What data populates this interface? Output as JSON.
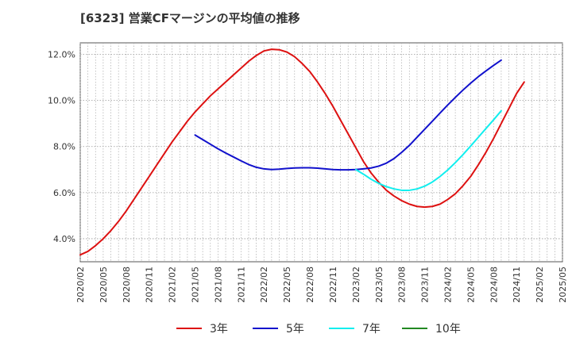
{
  "chart_data": {
    "type": "line",
    "title": "[6323]  営業CFマージンの平均値の推移",
    "xlabel": "",
    "ylabel": "",
    "y_unit": "%",
    "ylim": [
      3.0,
      12.5
    ],
    "y_ticks": [
      4.0,
      6.0,
      8.0,
      10.0,
      12.0
    ],
    "y_tick_labels": [
      "4.0%",
      "6.0%",
      "8.0%",
      "10.0%",
      "12.0%"
    ],
    "x_tick_labels": [
      "2020/02",
      "2020/05",
      "2020/08",
      "2020/11",
      "2021/02",
      "2021/05",
      "2021/08",
      "2021/11",
      "2022/02",
      "2022/05",
      "2022/08",
      "2022/11",
      "2023/02",
      "2023/05",
      "2023/08",
      "2023/11",
      "2024/02",
      "2024/05",
      "2024/08",
      "2024/11",
      "2025/02",
      "2025/05"
    ],
    "grid": true,
    "legend_position": "bottom",
    "series": [
      {
        "name": "3年",
        "color": "#dd1111",
        "points": [
          [
            "2020/02",
            3.3
          ],
          [
            "2020/03",
            3.45
          ],
          [
            "2020/04",
            3.7
          ],
          [
            "2020/05",
            4.0
          ],
          [
            "2020/06",
            4.35
          ],
          [
            "2020/07",
            4.75
          ],
          [
            "2020/08",
            5.2
          ],
          [
            "2020/09",
            5.7
          ],
          [
            "2020/10",
            6.2
          ],
          [
            "2020/11",
            6.7
          ],
          [
            "2020/12",
            7.2
          ],
          [
            "2021/01",
            7.7
          ],
          [
            "2021/02",
            8.2
          ],
          [
            "2021/03",
            8.65
          ],
          [
            "2021/04",
            9.1
          ],
          [
            "2021/05",
            9.5
          ],
          [
            "2021/06",
            9.85
          ],
          [
            "2021/07",
            10.2
          ],
          [
            "2021/08",
            10.5
          ],
          [
            "2021/09",
            10.8
          ],
          [
            "2021/10",
            11.1
          ],
          [
            "2021/11",
            11.4
          ],
          [
            "2021/12",
            11.7
          ],
          [
            "2022/01",
            11.95
          ],
          [
            "2022/02",
            12.15
          ],
          [
            "2022/03",
            12.22
          ],
          [
            "2022/04",
            12.2
          ],
          [
            "2022/05",
            12.1
          ],
          [
            "2022/06",
            11.9
          ],
          [
            "2022/07",
            11.6
          ],
          [
            "2022/08",
            11.25
          ],
          [
            "2022/09",
            10.8
          ],
          [
            "2022/10",
            10.3
          ],
          [
            "2022/11",
            9.75
          ],
          [
            "2022/12",
            9.15
          ],
          [
            "2023/01",
            8.55
          ],
          [
            "2023/02",
            7.95
          ],
          [
            "2023/03",
            7.35
          ],
          [
            "2023/04",
            6.85
          ],
          [
            "2023/05",
            6.45
          ],
          [
            "2023/06",
            6.1
          ],
          [
            "2023/07",
            5.85
          ],
          [
            "2023/08",
            5.65
          ],
          [
            "2023/09",
            5.5
          ],
          [
            "2023/10",
            5.4
          ],
          [
            "2023/11",
            5.37
          ],
          [
            "2023/12",
            5.4
          ],
          [
            "2024/01",
            5.5
          ],
          [
            "2024/02",
            5.7
          ],
          [
            "2024/03",
            5.95
          ],
          [
            "2024/04",
            6.3
          ],
          [
            "2024/05",
            6.7
          ],
          [
            "2024/06",
            7.2
          ],
          [
            "2024/07",
            7.75
          ],
          [
            "2024/08",
            8.35
          ],
          [
            "2024/09",
            9.0
          ],
          [
            "2024/10",
            9.65
          ],
          [
            "2024/11",
            10.3
          ],
          [
            "2024/12",
            10.8
          ]
        ]
      },
      {
        "name": "5年",
        "color": "#1111cc",
        "points": [
          [
            "2021/05",
            8.5
          ],
          [
            "2021/06",
            8.3
          ],
          [
            "2021/07",
            8.1
          ],
          [
            "2021/08",
            7.9
          ],
          [
            "2021/09",
            7.72
          ],
          [
            "2021/10",
            7.55
          ],
          [
            "2021/11",
            7.38
          ],
          [
            "2021/12",
            7.22
          ],
          [
            "2022/01",
            7.1
          ],
          [
            "2022/02",
            7.03
          ],
          [
            "2022/03",
            7.0
          ],
          [
            "2022/04",
            7.02
          ],
          [
            "2022/05",
            7.05
          ],
          [
            "2022/06",
            7.07
          ],
          [
            "2022/07",
            7.08
          ],
          [
            "2022/08",
            7.08
          ],
          [
            "2022/09",
            7.06
          ],
          [
            "2022/10",
            7.03
          ],
          [
            "2022/11",
            7.0
          ],
          [
            "2022/12",
            6.99
          ],
          [
            "2023/01",
            6.99
          ],
          [
            "2023/02",
            7.0
          ],
          [
            "2023/03",
            7.03
          ],
          [
            "2023/04",
            7.07
          ],
          [
            "2023/05",
            7.15
          ],
          [
            "2023/06",
            7.28
          ],
          [
            "2023/07",
            7.48
          ],
          [
            "2023/08",
            7.75
          ],
          [
            "2023/09",
            8.05
          ],
          [
            "2023/10",
            8.4
          ],
          [
            "2023/11",
            8.75
          ],
          [
            "2023/12",
            9.1
          ],
          [
            "2024/01",
            9.45
          ],
          [
            "2024/02",
            9.8
          ],
          [
            "2024/03",
            10.13
          ],
          [
            "2024/04",
            10.45
          ],
          [
            "2024/05",
            10.75
          ],
          [
            "2024/06",
            11.03
          ],
          [
            "2024/07",
            11.28
          ],
          [
            "2024/08",
            11.52
          ],
          [
            "2024/09",
            11.75
          ]
        ]
      },
      {
        "name": "7年",
        "color": "#11eeee",
        "points": [
          [
            "2023/02",
            7.0
          ],
          [
            "2023/03",
            6.8
          ],
          [
            "2023/04",
            6.58
          ],
          [
            "2023/05",
            6.4
          ],
          [
            "2023/06",
            6.26
          ],
          [
            "2023/07",
            6.16
          ],
          [
            "2023/08",
            6.1
          ],
          [
            "2023/09",
            6.1
          ],
          [
            "2023/10",
            6.16
          ],
          [
            "2023/11",
            6.28
          ],
          [
            "2023/12",
            6.46
          ],
          [
            "2024/01",
            6.7
          ],
          [
            "2024/02",
            6.98
          ],
          [
            "2024/03",
            7.3
          ],
          [
            "2024/04",
            7.65
          ],
          [
            "2024/05",
            8.02
          ],
          [
            "2024/06",
            8.4
          ],
          [
            "2024/07",
            8.78
          ],
          [
            "2024/08",
            9.16
          ],
          [
            "2024/09",
            9.55
          ]
        ]
      },
      {
        "name": "10年",
        "color": "#228822",
        "points": []
      }
    ]
  }
}
